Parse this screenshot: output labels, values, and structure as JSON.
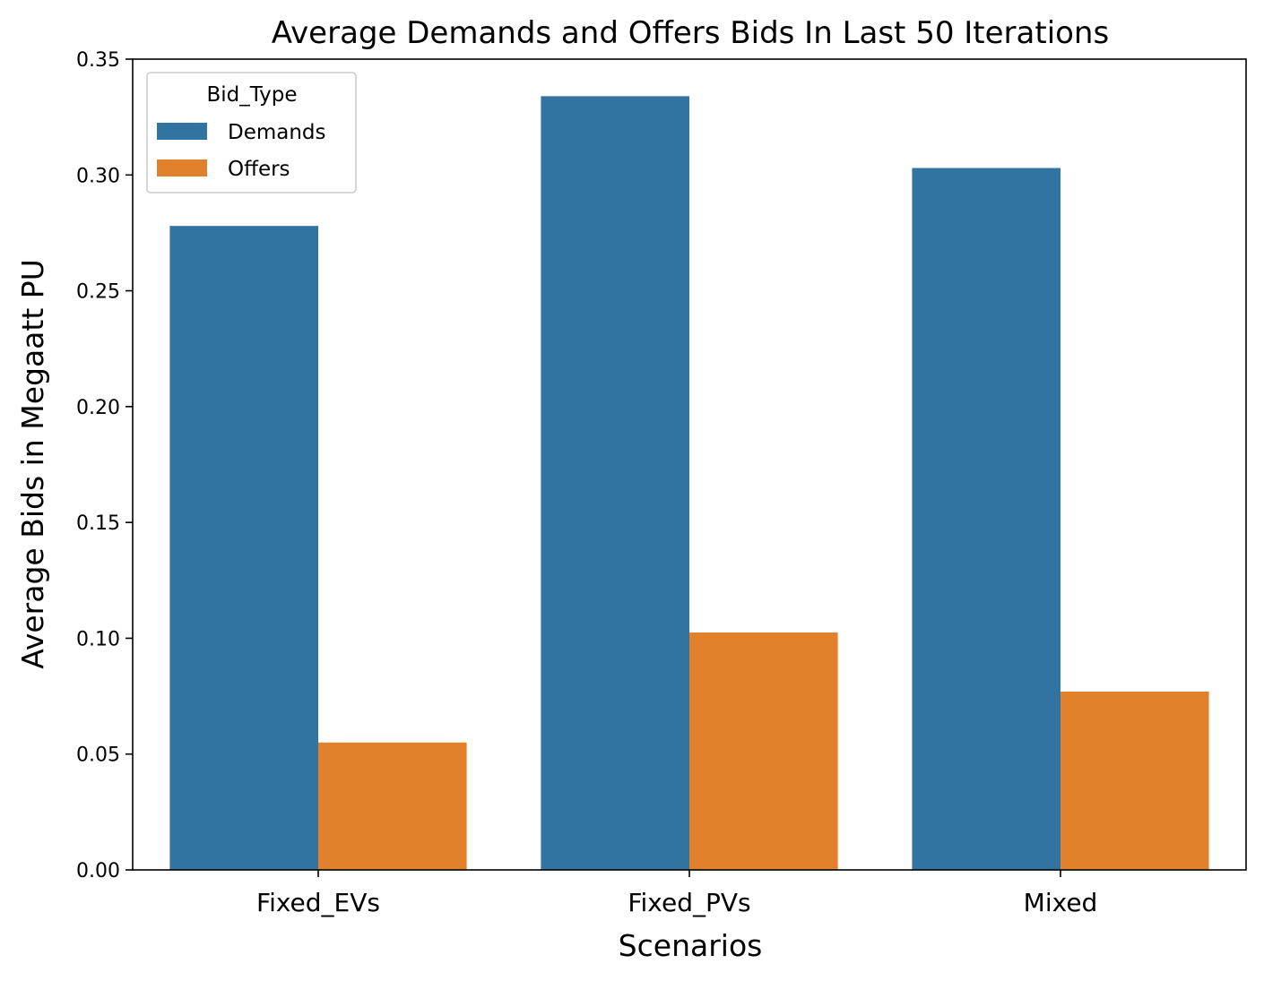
{
  "chart_data": {
    "type": "bar",
    "title": "Average Demands and Offers Bids In Last 50 Iterations",
    "xlabel": "Scenarios",
    "ylabel": "Average Bids in Megaatt PU",
    "categories": [
      "Fixed_EVs",
      "Fixed_PVs",
      "Mixed"
    ],
    "series": [
      {
        "name": "Demands",
        "color": "#3274a1",
        "values": [
          0.278,
          0.334,
          0.303
        ]
      },
      {
        "name": "Offers",
        "color": "#e1812c",
        "values": [
          0.055,
          0.1025,
          0.077
        ]
      }
    ],
    "ylim": [
      0,
      0.35
    ],
    "yticks": [
      0.0,
      0.05,
      0.1,
      0.15,
      0.2,
      0.25,
      0.3,
      0.35
    ],
    "ytick_labels": [
      "0.00",
      "0.05",
      "0.10",
      "0.15",
      "0.20",
      "0.25",
      "0.30",
      "0.35"
    ],
    "legend": {
      "title": "Bid_Type",
      "placement": "top-left"
    },
    "grid": false
  }
}
